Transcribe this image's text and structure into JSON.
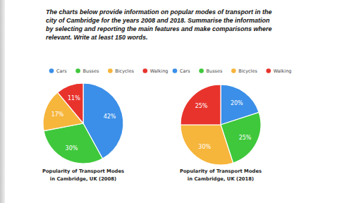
{
  "prompt": [
    "The charts below provide information on popular modes of transport in the",
    "city of Cambridge for the years 2008 and 2018. Summarise the information",
    "by selecting and reporting the main features and make comparisons where",
    "relevant. Write at least 150 words."
  ],
  "chart_data": [
    {
      "type": "pie",
      "title": "Popularity of Transport Modes in Cambridge, UK (2008)",
      "categories": [
        "Cars",
        "Busses",
        "Bicycles",
        "Walking"
      ],
      "values": [
        42,
        30,
        17,
        11
      ],
      "value_labels": [
        "42%",
        "30%",
        "17%",
        "11%"
      ],
      "colors": [
        "#3b8fe8",
        "#3fc83c",
        "#f6b53b",
        "#e8332d"
      ],
      "data_labels": true,
      "legend": "top"
    },
    {
      "type": "pie",
      "title": "Popularity of Transport Modes in Cambridge, UK (2018)",
      "categories": [
        "Cars",
        "Busses",
        "Bicycles",
        "Walking"
      ],
      "values": [
        20,
        25,
        30,
        25
      ],
      "value_labels": [
        "20%",
        "25%",
        "30%",
        "25%"
      ],
      "colors": [
        "#3b8fe8",
        "#3fc83c",
        "#f6b53b",
        "#e8332d"
      ],
      "data_labels": true,
      "legend": "top"
    }
  ]
}
